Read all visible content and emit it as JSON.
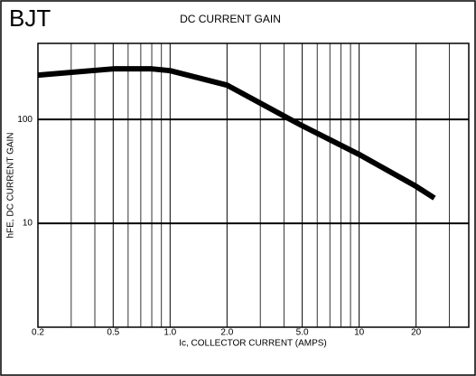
{
  "chart_data": {
    "type": "line",
    "annotation": "BJT",
    "title": "DC CURRENT GAIN",
    "x_label": "Ic, COLLECTOR CURRENT (AMPS)",
    "y_label": "hFE, DC CURRENT GAIN",
    "x": [
      0.2,
      0.5,
      0.8,
      1.0,
      2.0,
      4.0,
      5.0,
      10,
      20,
      25
    ],
    "values": [
      267,
      307,
      307,
      295,
      214,
      108,
      87,
      46,
      22.7,
      17.5
    ],
    "color": "#000000",
    "xscale": "log",
    "yscale": "log",
    "xlim": [
      0.2,
      38
    ],
    "ylim": [
      1,
      540
    ],
    "xticks": [
      0.2,
      0.5,
      {
        "value": 1,
        "label": "1.0"
      },
      {
        "value": 2,
        "label": "2.0"
      },
      {
        "value": 5,
        "label": "5.0"
      },
      10,
      20
    ],
    "x_minor_ticks": [
      0.3,
      0.4,
      0.6,
      0.7,
      0.8,
      0.9,
      3,
      4,
      6,
      7,
      8,
      9,
      30
    ],
    "yticks": [
      10,
      100
    ],
    "grid": true
  }
}
